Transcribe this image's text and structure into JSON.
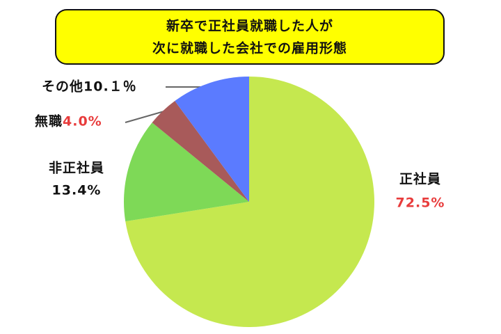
{
  "chart_data": {
    "type": "pie",
    "title": [
      "新卒で正社員就職した人が",
      "次に就職した会社での雇用形態"
    ],
    "categories": [
      "正社員",
      "非正社員",
      "無職",
      "その他"
    ],
    "values": [
      72.5,
      13.4,
      4.0,
      10.1
    ],
    "value_labels": [
      "72.5%",
      "13.4%",
      "4.0%",
      "10.１％"
    ],
    "colors": [
      "#c5e84f",
      "#7ed957",
      "#a85a5a",
      "#5b7bff"
    ],
    "value_label_colors": [
      "#e83c3c",
      "#111111",
      "#e83c3c",
      "#111111"
    ]
  }
}
